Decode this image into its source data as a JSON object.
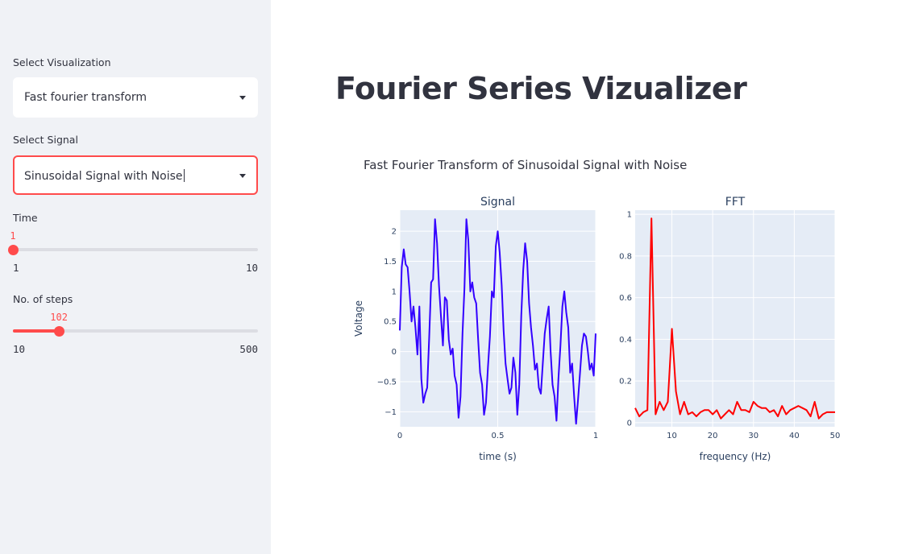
{
  "sidebar": {
    "visualization": {
      "label": "Select Visualization",
      "value": "Fast fourier transform"
    },
    "signal": {
      "label": "Select Signal",
      "value": "Sinusoidal Signal with Noise"
    },
    "time_slider": {
      "label": "Time",
      "value": "1",
      "min": "1",
      "max": "10",
      "fraction": 0.0
    },
    "steps_slider": {
      "label": "No. of steps",
      "value": "102",
      "min": "10",
      "max": "500",
      "fraction": 0.188
    }
  },
  "main": {
    "title": "Fourier Series Vizualizer",
    "subtitle": "Fast Fourier Transform of Sinusoidal Signal with Noise"
  },
  "colors": {
    "accent": "#ff4b4b",
    "signal_line": "#3300ff",
    "fft_line": "#ff0000",
    "plot_bg": "#e5ecf6"
  },
  "chart_data": [
    {
      "type": "line",
      "title": "Signal",
      "xlabel": "time (s)",
      "ylabel": "Voltage",
      "xlim": [
        0,
        1
      ],
      "ylim": [
        -1.25,
        2.35
      ],
      "xticks": [
        "0",
        "0.5",
        "1"
      ],
      "xtick_values": [
        0,
        0.5,
        1
      ],
      "yticks": [
        "−1",
        "−0.5",
        "0",
        "0.5",
        "1",
        "1.5",
        "2"
      ],
      "ytick_values": [
        -1,
        -0.5,
        0,
        0.5,
        1,
        1.5,
        2
      ],
      "series": [
        {
          "color": "#3300ff",
          "x": [
            0,
            0.01,
            0.02,
            0.03,
            0.04,
            0.05,
            0.06,
            0.07,
            0.08,
            0.09,
            0.1,
            0.11,
            0.12,
            0.13,
            0.14,
            0.15,
            0.16,
            0.17,
            0.18,
            0.19,
            0.2,
            0.21,
            0.22,
            0.23,
            0.24,
            0.25,
            0.26,
            0.27,
            0.28,
            0.29,
            0.3,
            0.31,
            0.32,
            0.33,
            0.34,
            0.35,
            0.36,
            0.37,
            0.38,
            0.39,
            0.4,
            0.41,
            0.42,
            0.43,
            0.44,
            0.45,
            0.46,
            0.47,
            0.48,
            0.49,
            0.5,
            0.51,
            0.52,
            0.53,
            0.54,
            0.55,
            0.56,
            0.57,
            0.58,
            0.59,
            0.6,
            0.61,
            0.62,
            0.63,
            0.64,
            0.65,
            0.66,
            0.67,
            0.68,
            0.69,
            0.7,
            0.71,
            0.72,
            0.73,
            0.74,
            0.75,
            0.76,
            0.77,
            0.78,
            0.79,
            0.8,
            0.81,
            0.82,
            0.83,
            0.84,
            0.85,
            0.86,
            0.87,
            0.88,
            0.89,
            0.9,
            0.91,
            0.92,
            0.93,
            0.94,
            0.95,
            0.96,
            0.97,
            0.98,
            0.99,
            1.0
          ],
          "y": [
            0.35,
            1.4,
            1.7,
            1.45,
            1.4,
            1.0,
            0.5,
            0.75,
            0.4,
            -0.05,
            0.75,
            -0.45,
            -0.85,
            -0.7,
            -0.6,
            0.25,
            1.15,
            1.2,
            2.2,
            1.8,
            1.1,
            0.6,
            0.1,
            0.9,
            0.85,
            0.2,
            -0.05,
            0.05,
            -0.4,
            -0.55,
            -1.1,
            -0.75,
            0.3,
            1.05,
            2.2,
            1.85,
            1.0,
            1.15,
            0.9,
            0.8,
            0.2,
            -0.35,
            -0.55,
            -1.05,
            -0.85,
            -0.25,
            0.25,
            1.0,
            0.9,
            1.75,
            2.0,
            1.65,
            1.1,
            0.35,
            -0.2,
            -0.45,
            -0.7,
            -0.6,
            -0.1,
            -0.35,
            -1.05,
            -0.55,
            0.6,
            1.35,
            1.8,
            1.5,
            0.8,
            0.4,
            0.1,
            -0.3,
            -0.2,
            -0.6,
            -0.7,
            -0.2,
            0.3,
            0.55,
            0.75,
            0.0,
            -0.55,
            -0.75,
            -1.15,
            -0.45,
            0.1,
            0.75,
            1.0,
            0.65,
            0.4,
            -0.35,
            -0.2,
            -0.75,
            -1.2,
            -0.8,
            -0.35,
            0.1,
            0.3,
            0.25,
            0.0,
            -0.3,
            -0.2,
            -0.4,
            0.3
          ]
        }
      ]
    },
    {
      "type": "line",
      "title": "FFT",
      "xlabel": "frequency (Hz)",
      "ylabel": "",
      "xlim": [
        1,
        50
      ],
      "ylim": [
        -0.02,
        1.02
      ],
      "xticks": [
        "10",
        "20",
        "30",
        "40",
        "50"
      ],
      "xtick_values": [
        10,
        20,
        30,
        40,
        50
      ],
      "yticks": [
        "0",
        "0.2",
        "0.4",
        "0.6",
        "0.8",
        "1"
      ],
      "ytick_values": [
        0,
        0.2,
        0.4,
        0.6,
        0.8,
        1
      ],
      "series": [
        {
          "color": "#ff0000",
          "x": [
            1,
            2,
            3,
            4,
            5,
            6,
            7,
            8,
            9,
            10,
            11,
            12,
            13,
            14,
            15,
            16,
            17,
            18,
            19,
            20,
            21,
            22,
            23,
            24,
            25,
            26,
            27,
            28,
            29,
            30,
            31,
            32,
            33,
            34,
            35,
            36,
            37,
            38,
            39,
            40,
            41,
            42,
            43,
            44,
            45,
            46,
            47,
            48,
            49,
            50
          ],
          "y": [
            0.07,
            0.03,
            0.05,
            0.06,
            0.98,
            0.04,
            0.1,
            0.06,
            0.1,
            0.45,
            0.15,
            0.04,
            0.1,
            0.04,
            0.05,
            0.03,
            0.05,
            0.06,
            0.06,
            0.04,
            0.06,
            0.02,
            0.04,
            0.06,
            0.04,
            0.1,
            0.06,
            0.06,
            0.05,
            0.1,
            0.08,
            0.07,
            0.07,
            0.05,
            0.06,
            0.03,
            0.08,
            0.04,
            0.06,
            0.07,
            0.08,
            0.07,
            0.06,
            0.03,
            0.1,
            0.02,
            0.04,
            0.05,
            0.05,
            0.05
          ]
        }
      ]
    }
  ]
}
